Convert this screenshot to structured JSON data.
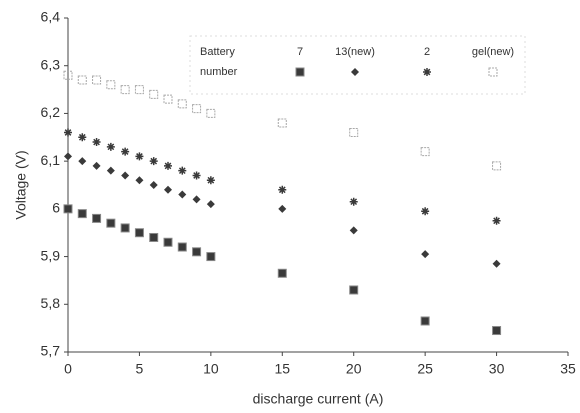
{
  "chart_data": {
    "type": "scatter",
    "x_label": "discharge current (A)",
    "y_label": "Voltage (V)",
    "legend_title": [
      "Battery",
      "number"
    ],
    "x": [
      0,
      1,
      2,
      3,
      4,
      5,
      6,
      7,
      8,
      9,
      10,
      15,
      20,
      25,
      30
    ],
    "series": [
      {
        "name": "7",
        "color": "#3a3a3a",
        "marker": "square",
        "values": [
          6.0,
          5.99,
          5.98,
          5.97,
          5.96,
          5.95,
          5.94,
          5.93,
          5.92,
          5.91,
          5.9,
          5.865,
          5.83,
          5.765,
          5.745
        ]
      },
      {
        "name": "13(new)",
        "color": "#3a3a3a",
        "marker": "diamond",
        "values": [
          6.11,
          6.1,
          6.09,
          6.08,
          6.07,
          6.06,
          6.05,
          6.04,
          6.03,
          6.02,
          6.01,
          6.0,
          5.955,
          5.905,
          5.885
        ]
      },
      {
        "name": "2",
        "color": "#3a3a3a",
        "marker": "star",
        "values": [
          6.16,
          6.15,
          6.14,
          6.13,
          6.12,
          6.11,
          6.1,
          6.09,
          6.08,
          6.07,
          6.06,
          6.04,
          6.015,
          5.995,
          5.975
        ]
      },
      {
        "name": "gel(new)",
        "color": "#a8a8a8",
        "marker": "open-square",
        "values": [
          6.28,
          6.27,
          6.27,
          6.26,
          6.25,
          6.25,
          6.24,
          6.23,
          6.22,
          6.21,
          6.2,
          6.18,
          6.16,
          6.12,
          6.09
        ]
      }
    ],
    "xlim": [
      0,
      35
    ],
    "xticks": [
      0,
      5,
      10,
      15,
      20,
      25,
      30,
      35
    ],
    "ylim": [
      5.7,
      6.4
    ],
    "yticks": [
      {
        "value": 5.7,
        "label": "5,7"
      },
      {
        "value": 5.8,
        "label": "5,8"
      },
      {
        "value": 5.9,
        "label": "5,9"
      },
      6,
      {
        "value": 6.1,
        "label": "6,1"
      },
      {
        "value": 6.2,
        "label": "6,2"
      },
      {
        "value": 6.3,
        "label": "6,3"
      },
      {
        "value": 6.4,
        "label": "6,4"
      }
    ],
    "grid": false
  }
}
